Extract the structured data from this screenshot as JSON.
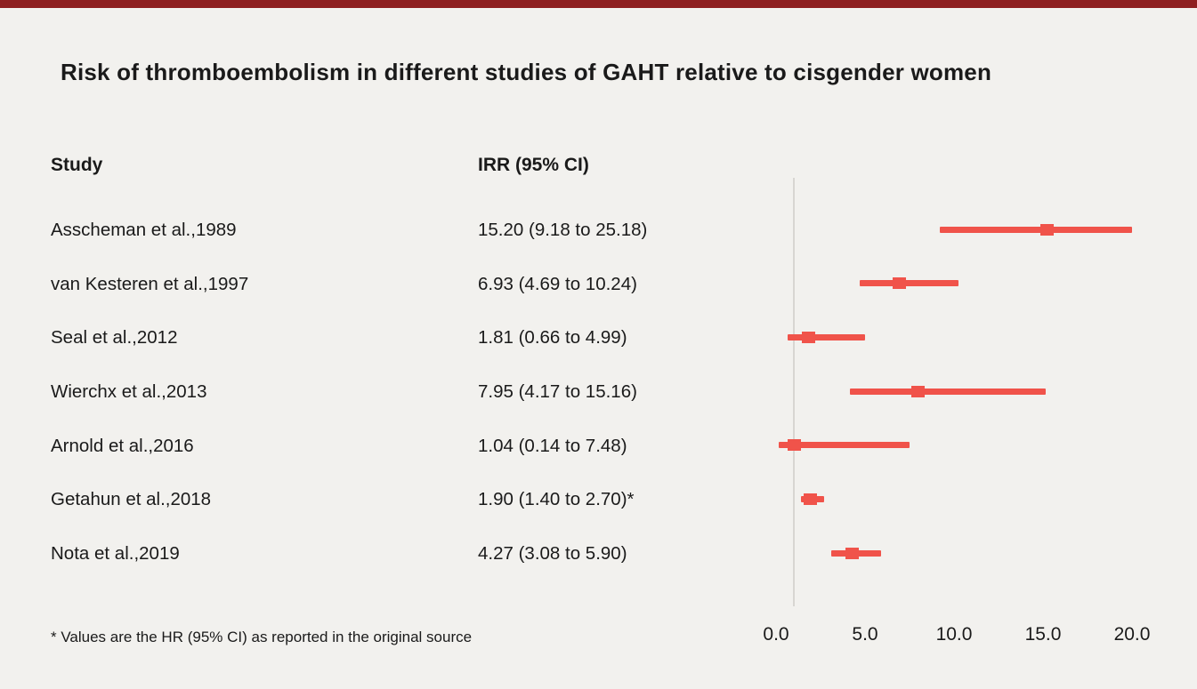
{
  "title": "Risk of thromboembolism in different studies of GAHT relative to cisgender women",
  "colors": {
    "accent": "#F0534A",
    "top_bar": "#8E1F20",
    "background": "#F2F1EE",
    "reference_line": "#D8D6D2",
    "text": "#1A1A1A"
  },
  "table": {
    "study_header": "Study",
    "irr_header": "IRR (95% CI)",
    "rows": [
      {
        "study": "Asscheman et al.,1989",
        "irr": "15.20 (9.18 to 25.18)"
      },
      {
        "study": "van Kesteren et al.,1997",
        "irr": "6.93 (4.69 to 10.24)"
      },
      {
        "study": "Seal et al.,2012",
        "irr": "1.81 (0.66 to 4.99)"
      },
      {
        "study": "Wierchx et al.,2013",
        "irr": "7.95 (4.17 to 15.16)"
      },
      {
        "study": "Arnold et al.,2016",
        "irr": "1.04 (0.14 to 7.48)"
      },
      {
        "study": "Getahun et al.,2018",
        "irr": "1.90 (1.40 to 2.70)*"
      },
      {
        "study": "Nota et al.,2019",
        "irr": "4.27 (3.08 to 5.90)"
      }
    ]
  },
  "footnote": "* Values are the HR (95% CI) as reported in the original source",
  "chart_data": {
    "type": "forest",
    "title": "Risk of thromboembolism in different studies of GAHT relative to cisgender women",
    "xlabel": "",
    "ylabel": "",
    "xlim": [
      0,
      20
    ],
    "x_tick_labels": [
      "0.0",
      "5.0",
      "10.0",
      "15.0",
      "20.0"
    ],
    "x_tick_values": [
      0,
      5,
      10,
      15,
      20
    ],
    "reference_line": 1.0,
    "legend": "none",
    "points": [
      {
        "study": "Asscheman et al.,1989",
        "estimate": 15.2,
        "lower": 9.18,
        "upper": 25.18
      },
      {
        "study": "van Kesteren et al.,1997",
        "estimate": 6.93,
        "lower": 4.69,
        "upper": 10.24
      },
      {
        "study": "Seal et al.,2012",
        "estimate": 1.81,
        "lower": 0.66,
        "upper": 4.99
      },
      {
        "study": "Wierchx et al.,2013",
        "estimate": 7.95,
        "lower": 4.17,
        "upper": 15.16
      },
      {
        "study": "Arnold et al.,2016",
        "estimate": 1.04,
        "lower": 0.14,
        "upper": 7.48
      },
      {
        "study": "Getahun et al.,2018",
        "estimate": 1.9,
        "lower": 1.4,
        "upper": 2.7
      },
      {
        "study": "Nota et al.,2019",
        "estimate": 4.27,
        "lower": 3.08,
        "upper": 5.9
      }
    ]
  }
}
